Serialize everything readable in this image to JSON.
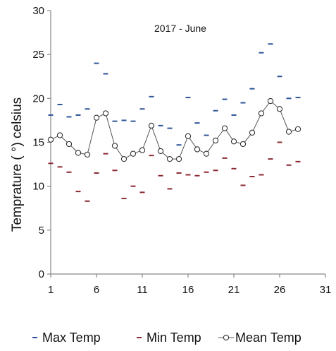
{
  "chart_data": {
    "type": "scatter",
    "title": "2017 - June",
    "xlabel": "",
    "ylabel": "Temprature ( °) celsius",
    "xlim": [
      1,
      31
    ],
    "ylim": [
      0,
      30
    ],
    "xticks": [
      1,
      6,
      11,
      16,
      21,
      26,
      31
    ],
    "yticks": [
      0,
      5,
      10,
      15,
      20,
      25,
      30
    ],
    "grid": false,
    "legend": "bottom",
    "series": [
      {
        "name": "Max Temp",
        "marker": "dash",
        "color": "#2e5597",
        "x": [
          1,
          2,
          3,
          4,
          5,
          6,
          7,
          8,
          9,
          10,
          11,
          12,
          13,
          14,
          15,
          16,
          17,
          18,
          19,
          20,
          21,
          22,
          23,
          24,
          25,
          26,
          27,
          28
        ],
        "values": [
          18.1,
          19.3,
          17.9,
          18.1,
          18.8,
          24.0,
          22.8,
          17.4,
          17.5,
          17.4,
          18.8,
          20.2,
          16.9,
          16.6,
          14.7,
          20.1,
          17.2,
          15.8,
          18.6,
          19.9,
          18.1,
          19.5,
          21.1,
          25.2,
          26.2,
          22.5,
          20.0,
          20.1
        ]
      },
      {
        "name": "Min Temp",
        "marker": "dash",
        "color": "#8b2a33",
        "x": [
          1,
          2,
          3,
          4,
          5,
          6,
          7,
          8,
          9,
          10,
          11,
          12,
          13,
          14,
          15,
          16,
          17,
          18,
          19,
          20,
          21,
          22,
          23,
          24,
          25,
          26,
          27,
          28
        ],
        "values": [
          12.6,
          12.2,
          11.6,
          9.4,
          8.3,
          11.5,
          13.7,
          11.8,
          8.6,
          10.0,
          9.3,
          13.5,
          11.2,
          9.7,
          11.5,
          11.3,
          11.2,
          11.6,
          11.8,
          13.2,
          12.0,
          10.1,
          11.1,
          11.3,
          13.1,
          15.0,
          12.4,
          12.8
        ]
      },
      {
        "name": "Mean Temp",
        "marker": "circle-line",
        "color": "#333333",
        "x": [
          1,
          2,
          3,
          4,
          5,
          6,
          7,
          8,
          9,
          10,
          11,
          12,
          13,
          14,
          15,
          16,
          17,
          18,
          19,
          20,
          21,
          22,
          23,
          24,
          25,
          26,
          27,
          28
        ],
        "values": [
          15.3,
          15.8,
          14.8,
          13.8,
          13.6,
          17.8,
          18.3,
          14.6,
          13.1,
          13.7,
          14.1,
          16.9,
          14.0,
          13.1,
          13.1,
          15.7,
          14.2,
          13.7,
          15.2,
          16.6,
          15.1,
          14.8,
          16.1,
          18.3,
          19.7,
          18.8,
          16.2,
          16.5
        ]
      }
    ]
  }
}
